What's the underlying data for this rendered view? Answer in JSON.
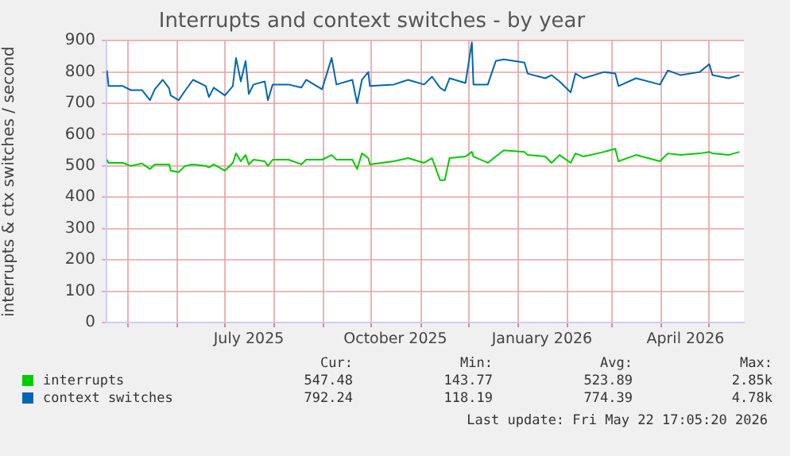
{
  "chart_data": {
    "type": "line",
    "title": "Interrupts and context switches - by year",
    "ylabel": "interrupts & ctx switches / second",
    "x": [
      "2025-04-18",
      "2025-04-19",
      "2025-04-28",
      "2025-05-03",
      "2025-05-10",
      "2025-05-15",
      "2025-05-18",
      "2025-05-23",
      "2025-05-27",
      "2025-05-28",
      "2025-06-02",
      "2025-06-06",
      "2025-06-11",
      "2025-06-19",
      "2025-06-21",
      "2025-06-24",
      "2025-07-01",
      "2025-07-06",
      "2025-07-08",
      "2025-07-11",
      "2025-07-14",
      "2025-07-16",
      "2025-07-19",
      "2025-07-26",
      "2025-07-28",
      "2025-07-31",
      "2025-08-10",
      "2025-08-18",
      "2025-08-21",
      "2025-08-31",
      "2025-09-06",
      "2025-09-09",
      "2025-09-19",
      "2025-09-22",
      "2025-09-25",
      "2025-09-29",
      "2025-09-30",
      "2025-10-15",
      "2025-10-24",
      "2025-11-03",
      "2025-11-08",
      "2025-11-13",
      "2025-11-16",
      "2025-11-19",
      "2025-11-29",
      "2025-12-03",
      "2025-12-04",
      "2025-12-13",
      "2025-12-18",
      "2025-12-23",
      "2026-01-05",
      "2026-01-07",
      "2026-01-18",
      "2026-01-22",
      "2026-01-27",
      "2026-02-03",
      "2026-02-06",
      "2026-02-11",
      "2026-02-24",
      "2026-03-03",
      "2026-03-05",
      "2026-03-16",
      "2026-03-31",
      "2026-04-05",
      "2026-04-13",
      "2026-04-25",
      "2026-05-01",
      "2026-05-03",
      "2026-05-13",
      "2026-05-20"
    ],
    "series": [
      {
        "name": "interrupts",
        "color": "#00cc00",
        "values": [
          520,
          510,
          510,
          500,
          508,
          490,
          505,
          505,
          505,
          485,
          480,
          500,
          505,
          500,
          495,
          505,
          485,
          510,
          540,
          515,
          535,
          505,
          520,
          515,
          500,
          520,
          520,
          505,
          520,
          520,
          535,
          520,
          520,
          490,
          540,
          525,
          505,
          515,
          525,
          510,
          525,
          455,
          455,
          525,
          530,
          545,
          530,
          510,
          530,
          550,
          545,
          535,
          530,
          510,
          535,
          510,
          540,
          530,
          545,
          555,
          515,
          535,
          515,
          540,
          535,
          540,
          545,
          540,
          535,
          545
        ]
      },
      {
        "name": "context switches",
        "color": "#0066b3",
        "values": [
          805,
          755,
          755,
          742,
          742,
          710,
          745,
          775,
          748,
          725,
          710,
          740,
          775,
          755,
          720,
          750,
          725,
          755,
          845,
          770,
          835,
          730,
          760,
          770,
          710,
          760,
          760,
          750,
          775,
          745,
          845,
          760,
          775,
          700,
          775,
          800,
          755,
          760,
          775,
          760,
          785,
          750,
          740,
          780,
          765,
          895,
          760,
          760,
          835,
          840,
          830,
          795,
          780,
          790,
          770,
          735,
          795,
          780,
          800,
          795,
          755,
          780,
          760,
          805,
          790,
          800,
          825,
          790,
          780,
          790
        ]
      }
    ],
    "xlim": [
      "2025-04-17T17:05",
      "2026-05-22T17:05"
    ],
    "xticks": [
      {
        "value": "2025-05-01",
        "label": null
      },
      {
        "value": "2025-06-01",
        "label": null
      },
      {
        "value": "2025-07-01",
        "label": null
      },
      {
        "value": "2025-07-16",
        "label": "July 2025"
      },
      {
        "value": "2025-08-01",
        "label": null
      },
      {
        "value": "2025-09-01",
        "label": null
      },
      {
        "value": "2025-10-01",
        "label": null
      },
      {
        "value": "2025-10-16",
        "label": "October 2025"
      },
      {
        "value": "2025-11-01",
        "label": null
      },
      {
        "value": "2025-12-01",
        "label": null
      },
      {
        "value": "2026-01-01",
        "label": null
      },
      {
        "value": "2026-01-16",
        "label": "January 2026"
      },
      {
        "value": "2026-02-01",
        "label": null
      },
      {
        "value": "2026-03-01",
        "label": null
      },
      {
        "value": "2026-04-01",
        "label": null
      },
      {
        "value": "2026-04-16",
        "label": "April 2026"
      },
      {
        "value": "2026-05-01",
        "label": null
      }
    ],
    "ylim": [
      0,
      900
    ],
    "yticks": [
      0,
      100,
      200,
      300,
      400,
      500,
      600,
      700,
      800,
      900
    ],
    "grid": true,
    "legend": "bottom",
    "marker": "none",
    "line_style": "solid",
    "annotations": [
      "Cur:",
      "Min:",
      "Avg:",
      "Max:",
      "547.48",
      "143.77",
      "523.89",
      "2.85k",
      "792.24",
      "118.19",
      "774.39",
      "4.78k",
      "Last update: Fri May 22 17:05:20 2026"
    ]
  }
}
